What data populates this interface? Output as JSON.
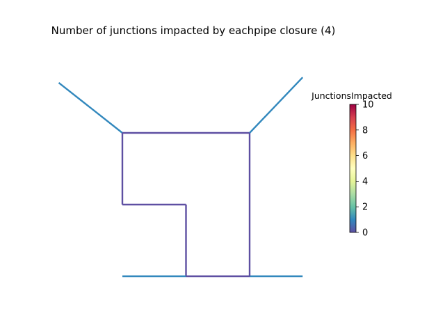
{
  "chart_data": {
    "type": "network",
    "title": "Number of junctions impacted by eachpipe closure (4)",
    "colorbar": {
      "label": "JunctionsImpacted",
      "min": 0,
      "max": 10,
      "ticks": [
        "0",
        "2",
        "4",
        "6",
        "8",
        "10"
      ],
      "colormap": "Spectral_r"
    },
    "nodes": {
      "J1": [
        -1.2,
        3.4
      ],
      "J2": [
        0,
        2
      ],
      "J3": [
        1.2,
        2
      ],
      "J4": [
        2.4,
        2
      ],
      "J5": [
        3.4,
        3.55
      ],
      "J6": [
        0,
        0
      ],
      "J7": [
        1.2,
        0
      ],
      "J8": [
        0,
        -2
      ],
      "J9": [
        1.2,
        -2
      ],
      "J10": [
        2.4,
        -2
      ],
      "J11": [
        3.4,
        -2
      ]
    },
    "pipes": [
      {
        "from": "J1",
        "to": "J2",
        "value": 1
      },
      {
        "from": "J2",
        "to": "J3",
        "value": 0
      },
      {
        "from": "J3",
        "to": "J4",
        "value": 0
      },
      {
        "from": "J4",
        "to": "J5",
        "value": 1
      },
      {
        "from": "J2",
        "to": "J6",
        "value": 0
      },
      {
        "from": "J6",
        "to": "J7",
        "value": 0
      },
      {
        "from": "J7",
        "to": "J9",
        "value": 0
      },
      {
        "from": "J8",
        "to": "J9",
        "value": 1
      },
      {
        "from": "J9",
        "to": "J10",
        "value": 0
      },
      {
        "from": "J10",
        "to": "J11",
        "value": 1
      },
      {
        "from": "J4",
        "to": "J10",
        "value": 0
      }
    ]
  }
}
